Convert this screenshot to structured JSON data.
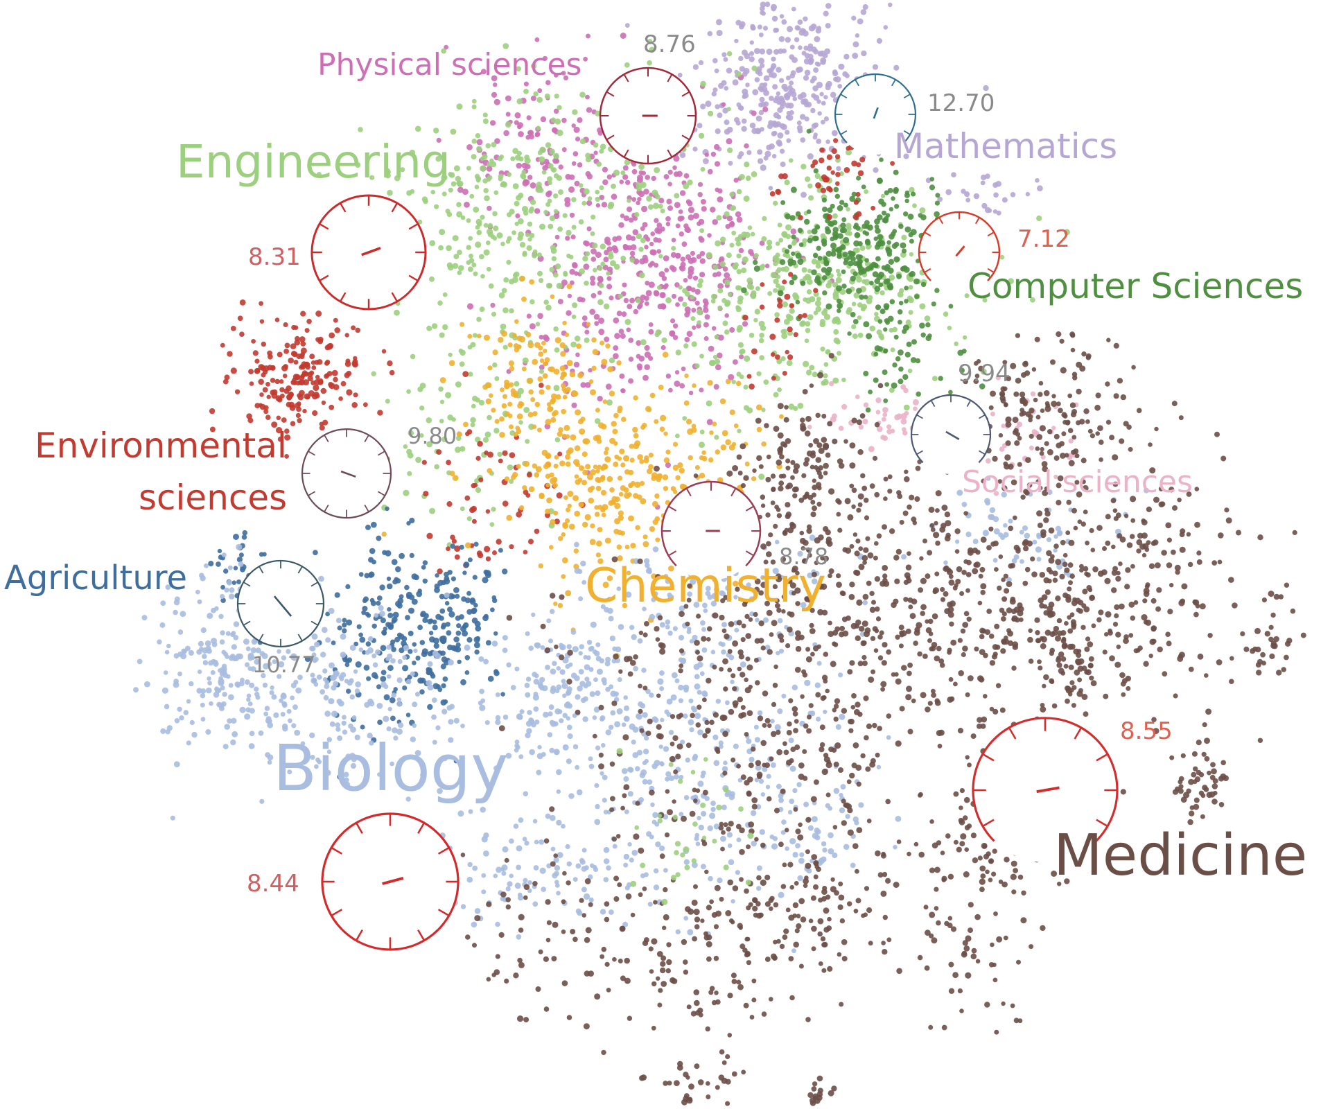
{
  "chart_data": {
    "type": "scatter",
    "title": "",
    "xlabel": "",
    "ylabel": "",
    "grid": false,
    "legend": "none",
    "fields": [
      {
        "key": "physical",
        "name": "Physical sciences",
        "color": "#cc6fb5",
        "gauge": "8.76",
        "gaugeColor": "#a12a3a"
      },
      {
        "key": "math",
        "name": "Mathematics",
        "color": "#b6a6d4",
        "gauge": "12.70",
        "gaugeColor": "#2f6f8e"
      },
      {
        "key": "engineering",
        "name": "Engineering",
        "color": "#9ccf7e",
        "gauge": "8.31",
        "gaugeColor": "#cc2b2b"
      },
      {
        "key": "cs",
        "name": "Computer Sciences",
        "color": "#4e8f40",
        "gauge": "7.12",
        "gaugeColor": "#d93b2a"
      },
      {
        "key": "env",
        "name1": "Environmental",
        "name2": "sciences",
        "color": "#c23a30",
        "gauge": "9.80",
        "gaugeColor": "#6e4a5a"
      },
      {
        "key": "social",
        "name": "Social sciences",
        "color": "#ebb2c8",
        "gauge": "9.94",
        "gaugeColor": "#4f5874"
      },
      {
        "key": "chemistry",
        "name": "Chemistry",
        "color": "#f0b030",
        "gauge": "8.78",
        "gaugeColor": "#9a3d55"
      },
      {
        "key": "agriculture",
        "name": "Agriculture",
        "color": "#3f6e9e",
        "gauge": "10.77",
        "gaugeColor": "#3a5868"
      },
      {
        "key": "biology",
        "name": "Biology",
        "color": "#a9bde0",
        "gauge": "8.44",
        "gaugeColor": "#d42a2a"
      },
      {
        "key": "medicine",
        "name": "Medicine",
        "color": "#6b4f47",
        "gauge": "8.55",
        "gaugeColor": "#d32e2e"
      }
    ],
    "gaugeValueTextColor": "#8a8a8a"
  }
}
